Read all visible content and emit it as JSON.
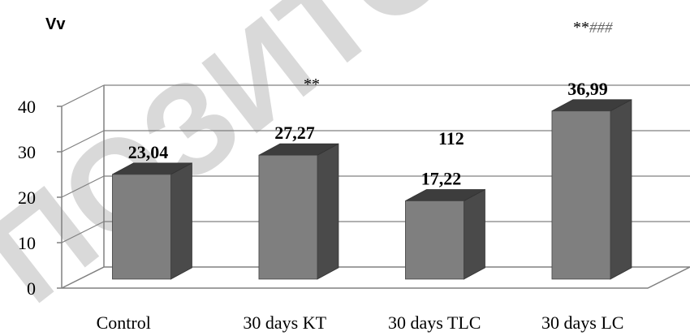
{
  "chart_data": {
    "type": "bar",
    "ylabel": "Vv",
    "categories": [
      "Control",
      "30 days KT",
      "30 days TLC",
      "30 days LC"
    ],
    "values": [
      23.04,
      27.27,
      17.22,
      36.99
    ],
    "data_labels": [
      "23,04",
      "27,27",
      "17,22",
      "36,99"
    ],
    "ylim": [
      0,
      40
    ],
    "yticks": [
      "0",
      "10",
      "20",
      "30",
      "40"
    ],
    "grid": true,
    "style": "3d",
    "annotations": [
      "**",
      "112",
      "**",
      "###"
    ]
  },
  "watermark": "ПОЗИТОР",
  "colors": {
    "bar_front": "#7f7f7f",
    "bar_side": "#4a4a4a",
    "bar_top": "#3d3d3d",
    "grid": "#808080"
  }
}
